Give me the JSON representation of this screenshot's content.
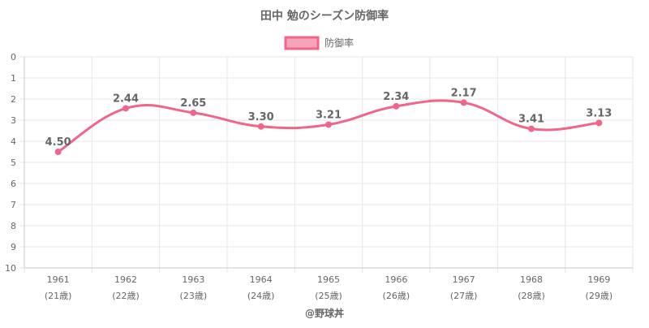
{
  "chart_data": {
    "type": "line",
    "title": "田中 勉のシーズン防御率",
    "xlabel": "",
    "ylabel": "",
    "categories": [
      "1961",
      "1962",
      "1963",
      "1964",
      "1965",
      "1966",
      "1967",
      "1968",
      "1969"
    ],
    "sub_labels": [
      "(21歳)",
      "(22歳)",
      "(23歳)",
      "(24歳)",
      "(25歳)",
      "(26歳)",
      "(27歳)",
      "(28歳)",
      "(29歳)"
    ],
    "series": [
      {
        "name": "防御率",
        "values": [
          4.5,
          2.44,
          2.65,
          3.3,
          3.21,
          2.34,
          2.17,
          3.41,
          3.13
        ]
      }
    ],
    "value_labels": [
      "4.50",
      "2.44",
      "2.65",
      "3.30",
      "3.21",
      "2.34",
      "2.17",
      "3.41",
      "3.13"
    ],
    "ylim": [
      0,
      10
    ],
    "y_reversed": true,
    "y_ticks": [
      "0",
      "1",
      "2",
      "3",
      "4",
      "5",
      "6",
      "7",
      "8",
      "9",
      "10"
    ],
    "grid": true,
    "legend_position": "top-center",
    "colors": {
      "line": "#f0668a",
      "legend_fill": "#f7a4b8",
      "grid": "#e6e6e6",
      "axis": "#c8c8c8",
      "title": "#666666",
      "tick_text": "#666666",
      "value_text": "#666666"
    },
    "watermark": "@野球丼"
  }
}
